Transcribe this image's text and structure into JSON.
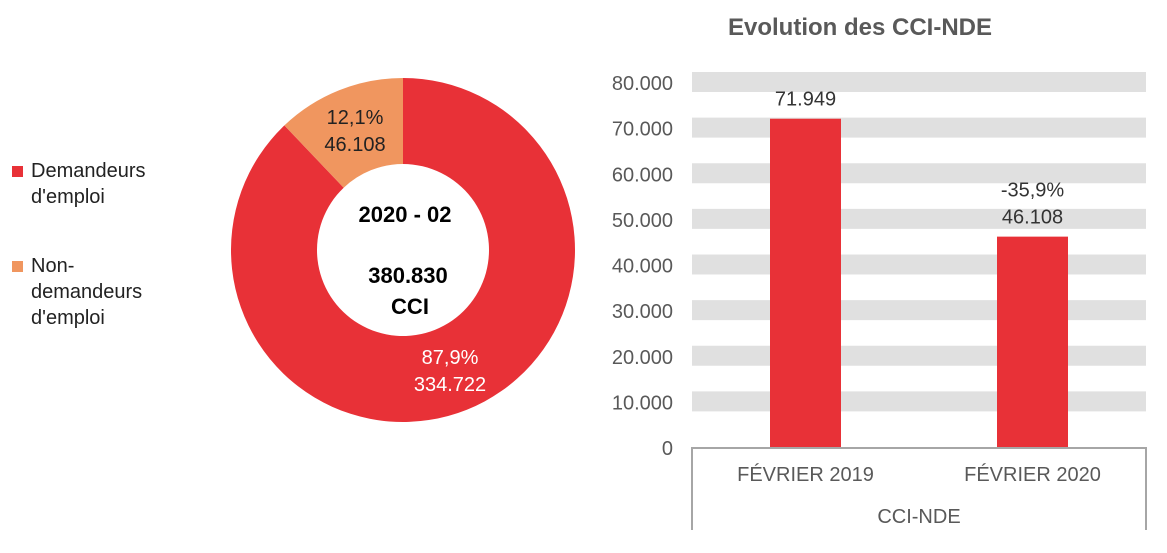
{
  "chart_data": [
    {
      "type": "pie",
      "variant": "donut",
      "center_text": {
        "line1": "2020 - 02",
        "line2": "380.830",
        "line3": "CCI"
      },
      "legend_position": "left",
      "slices": [
        {
          "name": "Demandeurs d'emploi",
          "value": 334722,
          "percent": 87.9,
          "label_pct": "87,9%",
          "label_value": "334.722",
          "color": "#E83137"
        },
        {
          "name": "Non-demandeurs d'emploi",
          "value": 46108,
          "percent": 12.1,
          "label_pct": "12,1%",
          "label_value": "46.108",
          "color": "#F0965F"
        }
      ],
      "legend_lines": [
        [
          "Demandeurs",
          "d'emploi"
        ],
        [
          "Non-",
          "demandeurs",
          "d'emploi"
        ]
      ]
    },
    {
      "type": "bar",
      "title": "Evolution des CCI-NDE",
      "categories": [
        "FÉVRIER 2019",
        "FÉVRIER 2020"
      ],
      "group_label": "CCI-NDE",
      "values": [
        71949,
        46108
      ],
      "value_labels": [
        "71.949",
        "46.108"
      ],
      "change_labels": [
        "",
        "-35,9%"
      ],
      "ylim": [
        0,
        80000
      ],
      "yticks": [
        0,
        10000,
        20000,
        30000,
        40000,
        50000,
        60000,
        70000,
        80000
      ],
      "ytick_labels": [
        "0",
        "10.000",
        "20.000",
        "30.000",
        "40.000",
        "50.000",
        "60.000",
        "70.000",
        "80.000"
      ],
      "grid": true,
      "bar_color": "#E83137",
      "grid_color": "#E0E0E0"
    }
  ]
}
